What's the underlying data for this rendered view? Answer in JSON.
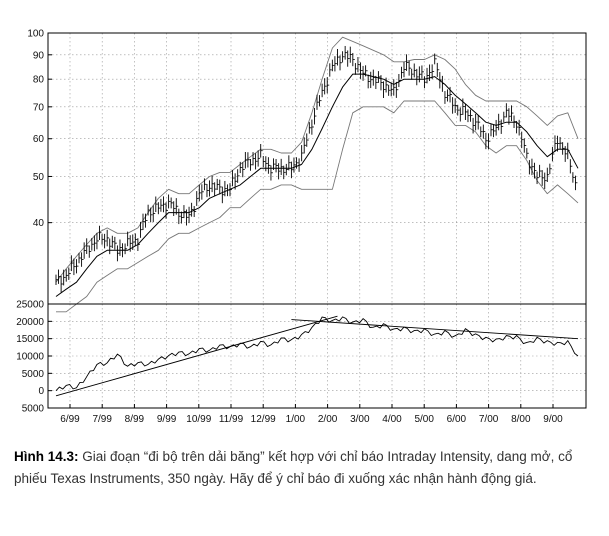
{
  "chart_data": [
    {
      "type": "line",
      "panel": "price",
      "scale": "log",
      "y_ticks": [
        40,
        50,
        60,
        70,
        80,
        90,
        100
      ],
      "ylim": [
        27,
        100
      ],
      "x_labels": [
        "6/99",
        "7/99",
        "8/99",
        "9/99",
        "10/99",
        "11/99",
        "12/99",
        "1/00",
        "2/00",
        "3/00",
        "4/00",
        "5/00",
        "6/00",
        "7/00",
        "8/00",
        "9/00"
      ],
      "grid": true,
      "series": [
        {
          "role": "price_bars",
          "color": "#000000",
          "values": [
            30,
            31,
            33,
            35,
            37,
            37,
            35,
            36,
            37,
            42,
            43,
            44,
            42,
            41,
            46,
            48,
            47,
            47,
            52,
            54,
            55,
            52,
            52,
            52,
            55,
            65,
            75,
            85,
            90,
            88,
            82,
            80,
            78,
            75,
            85,
            83,
            80,
            86,
            75,
            70,
            68,
            65,
            60,
            63,
            68,
            65,
            55,
            50,
            50,
            60,
            55,
            46
          ]
        },
        {
          "role": "moving_average",
          "color": "#000000",
          "values": [
            28,
            29,
            30,
            32,
            34,
            35,
            35,
            35,
            36,
            38,
            40,
            42,
            42,
            42,
            43,
            45,
            46,
            47,
            48,
            50,
            52,
            52,
            52,
            52,
            53,
            57,
            63,
            70,
            77,
            82,
            82,
            81,
            80,
            78,
            80,
            80,
            80,
            81,
            78,
            74,
            71,
            68,
            65,
            64,
            65,
            65,
            62,
            58,
            55,
            57,
            57,
            52
          ]
        },
        {
          "role": "upper_band",
          "color": "#777777",
          "values": [
            30,
            32,
            34,
            36,
            38,
            39,
            38,
            38,
            39,
            42,
            45,
            47,
            46,
            46,
            48,
            50,
            51,
            51,
            53,
            55,
            57,
            57,
            56,
            56,
            59,
            68,
            80,
            93,
            98,
            96,
            94,
            92,
            90,
            87,
            87,
            88,
            88,
            90,
            88,
            84,
            78,
            74,
            72,
            72,
            72,
            72,
            70,
            67,
            64,
            67,
            68,
            60
          ]
        },
        {
          "role": "lower_band",
          "color": "#777777",
          "values": [
            26,
            26,
            27,
            28,
            30,
            31,
            32,
            32,
            33,
            34,
            35,
            37,
            38,
            38,
            39,
            40,
            41,
            43,
            43,
            45,
            47,
            47,
            48,
            48,
            47,
            47,
            47,
            47,
            57,
            68,
            70,
            70,
            70,
            68,
            72,
            72,
            72,
            72,
            68,
            64,
            64,
            62,
            58,
            56,
            58,
            58,
            54,
            49,
            46,
            48,
            46,
            44
          ]
        }
      ]
    },
    {
      "type": "line",
      "panel": "intraday_intensity",
      "y_ticks": [
        -5000,
        0,
        5000,
        10000,
        15000,
        20000,
        25000
      ],
      "y_tick_labels": [
        "5000",
        "0",
        "5000",
        "10000",
        "15000",
        "20000",
        "25000"
      ],
      "ylim": [
        -5000,
        25000
      ],
      "x_labels": [
        "6/99",
        "7/99",
        "8/99",
        "9/99",
        "10/99",
        "11/99",
        "12/99",
        "1/00",
        "2/00",
        "3/00",
        "4/00",
        "5/00",
        "6/00",
        "7/00",
        "8/00",
        "9/00"
      ],
      "grid": true,
      "series": [
        {
          "role": "indicator",
          "color": "#000000",
          "values": [
            0,
            1500,
            800,
            4000,
            7500,
            8000,
            10500,
            7000,
            8000,
            7500,
            9000,
            10000,
            11000,
            10500,
            12000,
            11500,
            13000,
            12500,
            13500,
            12500,
            14000,
            13000,
            15000,
            14500,
            16000,
            18000,
            21000,
            20000,
            21000,
            19500,
            20500,
            18000,
            19000,
            17500,
            18000,
            17000,
            17500,
            16000,
            17000,
            15500,
            17500,
            16000,
            15000,
            14500,
            15500,
            15500,
            13500,
            15000,
            14000,
            13500,
            14000,
            10000
          ]
        },
        {
          "role": "uptrend_line",
          "color": "#000000",
          "points": [
            [
              0,
              -1500
            ],
            [
              27.5,
              21500
            ]
          ]
        },
        {
          "role": "downtrend_line",
          "color": "#000000",
          "points": [
            [
              23,
              20500
            ],
            [
              51,
              15000
            ]
          ]
        }
      ]
    }
  ],
  "caption": {
    "label": "Hình 14.3:",
    "text": " Giai đoạn “đi bộ trên dải băng” kết hợp với chỉ báo Intraday Intensity, dang mở, cổ phiếu Texas Instruments, 350 ngày. Hãy để ý chỉ báo đi xuống xác nhận hành động giá."
  }
}
